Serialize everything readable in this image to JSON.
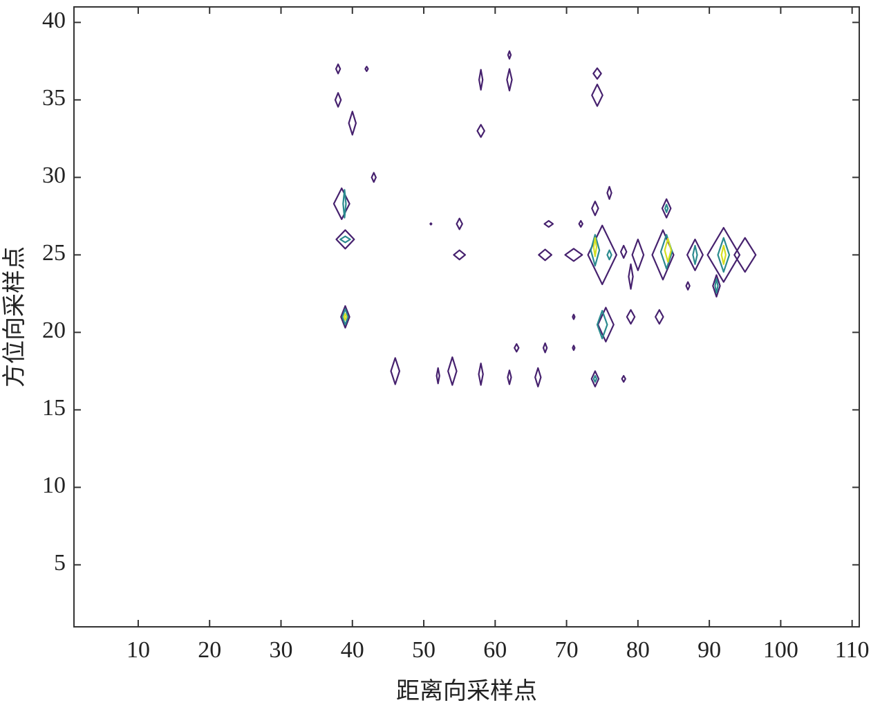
{
  "chart_data": {
    "type": "contour",
    "x_label": "距离向采样点",
    "y_label": "方位向采样点",
    "xlim": [
      1,
      111
    ],
    "ylim": [
      1,
      41
    ],
    "xticks": [
      10,
      20,
      30,
      40,
      50,
      60,
      70,
      80,
      90,
      100,
      110
    ],
    "yticks": [
      5,
      10,
      15,
      20,
      25,
      30,
      35,
      40
    ],
    "series": [
      {
        "color": "#46216e",
        "x": [
          38,
          42,
          38,
          40,
          43,
          38.5,
          39,
          39,
          46,
          52,
          54,
          58,
          62,
          66,
          63,
          67,
          71,
          71,
          74,
          78,
          58,
          62,
          62,
          58,
          74.3,
          74.3,
          55,
          51,
          55,
          67.5,
          67,
          72,
          71,
          74,
          76,
          75,
          75.5,
          78,
          79,
          83,
          79,
          80,
          84,
          83.5,
          87,
          88,
          92,
          95,
          91
        ],
        "y": [
          37,
          37,
          35,
          33.5,
          30,
          28.3,
          26,
          21,
          17.5,
          17.2,
          17.5,
          17.3,
          17.1,
          17.1,
          19,
          19,
          19,
          21,
          17,
          17,
          36.3,
          36.3,
          37.9,
          33,
          36.7,
          35.3,
          27,
          27,
          25,
          27,
          25,
          27,
          25,
          28,
          29,
          25,
          20.5,
          25.2,
          21,
          21,
          23.6,
          25,
          28,
          25,
          23,
          25,
          25,
          25,
          23
        ],
        "w": [
          0.6,
          0.4,
          0.8,
          1,
          0.6,
          2.2,
          2.5,
          1.2,
          1.2,
          0.4,
          1.2,
          0.6,
          0.5,
          0.8,
          0.6,
          0.5,
          0.3,
          0.3,
          1,
          0.5,
          0.5,
          0.7,
          0.4,
          1,
          1.1,
          1.5,
          0.8,
          0.2,
          1.6,
          1.2,
          1.8,
          0.5,
          2.4,
          0.9,
          0.6,
          4,
          2.2,
          0.8,
          1.1,
          1.1,
          0.6,
          1.6,
          1.2,
          3,
          0.5,
          2.2,
          4.5,
          3,
          1
        ],
        "h": [
          0.6,
          0.3,
          0.9,
          1.5,
          0.6,
          2,
          1.2,
          1.4,
          1.7,
          1,
          1.8,
          1.4,
          0.9,
          1.2,
          0.5,
          0.6,
          0.3,
          0.3,
          1,
          0.4,
          1.3,
          1.4,
          0.5,
          0.8,
          0.7,
          1.4,
          0.7,
          0.1,
          0.6,
          0.4,
          0.7,
          0.4,
          0.8,
          0.9,
          0.8,
          3.8,
          2.2,
          0.8,
          0.9,
          0.9,
          1.6,
          2,
          1.2,
          3.2,
          0.5,
          2,
          3.5,
          2.2,
          1.4
        ]
      },
      {
        "color": "#2a8a8e",
        "x": [
          38.9,
          39,
          39,
          74,
          75,
          76,
          84,
          84,
          88,
          92,
          91,
          74
        ],
        "y": [
          28.3,
          26,
          21,
          25.3,
          20.5,
          25,
          28,
          25.2,
          25,
          25,
          23,
          17
        ],
        "w": [
          0.4,
          1.4,
          0.8,
          1.2,
          1.4,
          0.6,
          0.4,
          1.6,
          0.6,
          1.6,
          0.4,
          0.4
        ],
        "h": [
          1.8,
          0.4,
          1,
          2,
          1.8,
          0.6,
          0.5,
          2.2,
          1.2,
          2.2,
          0.9,
          0.4
        ]
      },
      {
        "color": "#d5e021",
        "x": [
          39,
          74,
          84.2,
          92
        ],
        "y": [
          21,
          25.5,
          25.3,
          25
        ],
        "w": [
          0.3,
          0.4,
          0.9,
          0.6
        ],
        "h": [
          0.4,
          1.2,
          1.5,
          1.2
        ]
      }
    ]
  }
}
